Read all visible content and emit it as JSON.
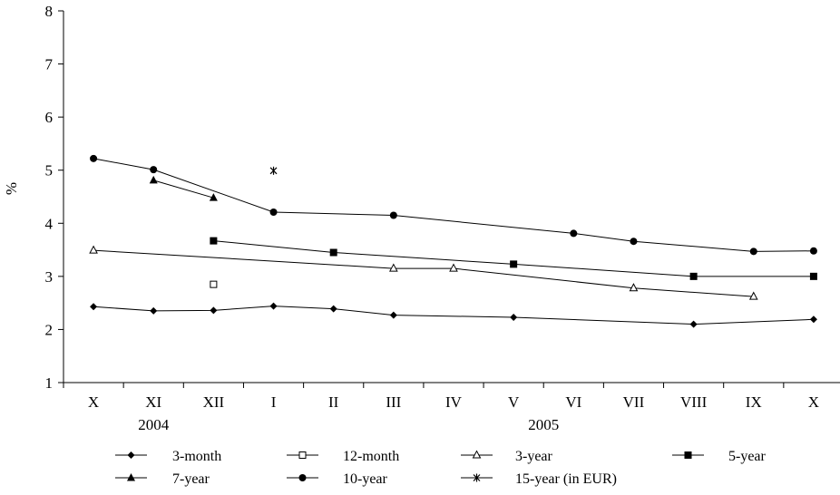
{
  "chart_data": {
    "type": "line",
    "title": "",
    "ylabel": "%",
    "xlabel": "",
    "ylim": [
      1,
      8
    ],
    "yticks": [
      "1",
      "2",
      "3",
      "4",
      "5",
      "6",
      "7",
      "8"
    ],
    "categories": [
      "X",
      "XI",
      "XII",
      "I",
      "II",
      "III",
      "IV",
      "V",
      "VI",
      "VII",
      "VIII",
      "IX",
      "X"
    ],
    "year_labels": [
      {
        "label": "2004",
        "category_index": 1
      },
      {
        "label": "2005",
        "category_index": 7.5
      }
    ],
    "grid": false,
    "legend_position": "bottom",
    "series": [
      {
        "name": "3-month",
        "marker": "diamond",
        "line": true,
        "values": [
          2.43,
          2.35,
          2.36,
          2.44,
          2.39,
          2.27,
          null,
          2.23,
          null,
          null,
          2.1,
          null,
          2.19
        ]
      },
      {
        "name": "12-month",
        "marker": "square-open",
        "line": true,
        "values": [
          null,
          null,
          2.85,
          null,
          null,
          null,
          null,
          null,
          null,
          null,
          null,
          null,
          null
        ]
      },
      {
        "name": "3-year",
        "marker": "triangle-open",
        "line": true,
        "values": [
          3.49,
          null,
          null,
          null,
          null,
          3.15,
          3.15,
          null,
          null,
          2.78,
          null,
          2.62,
          null
        ]
      },
      {
        "name": "5-year",
        "marker": "square",
        "line": true,
        "values": [
          null,
          null,
          3.67,
          null,
          3.45,
          null,
          null,
          3.23,
          null,
          null,
          3.0,
          null,
          3.0
        ]
      },
      {
        "name": "7-year",
        "marker": "triangle",
        "line": true,
        "values": [
          null,
          4.81,
          4.48,
          null,
          null,
          null,
          null,
          null,
          null,
          null,
          null,
          null,
          null
        ]
      },
      {
        "name": "10-year",
        "marker": "circle",
        "line": true,
        "values": [
          5.22,
          5.01,
          null,
          4.21,
          null,
          4.15,
          null,
          null,
          3.81,
          3.66,
          null,
          3.47,
          3.48
        ]
      },
      {
        "name": "15-year (in EUR)",
        "marker": "star",
        "line": true,
        "values": [
          null,
          null,
          null,
          4.99,
          null,
          null,
          null,
          null,
          null,
          null,
          null,
          null,
          null
        ]
      }
    ]
  }
}
